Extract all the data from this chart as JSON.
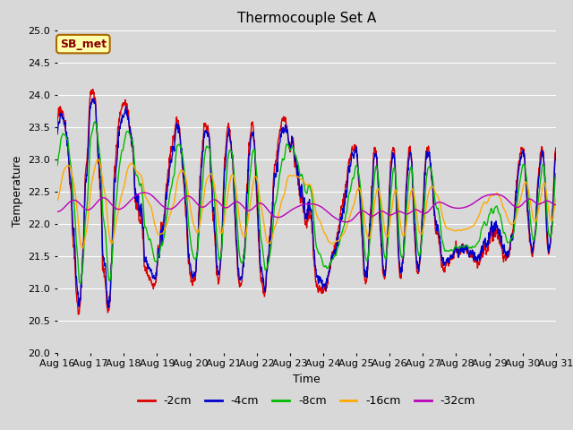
{
  "title": "Thermocouple Set A",
  "xlabel": "Time",
  "ylabel": "Temperature",
  "ylim": [
    20.0,
    25.0
  ],
  "yticks": [
    20.0,
    20.5,
    21.0,
    21.5,
    22.0,
    22.5,
    23.0,
    23.5,
    24.0,
    24.5,
    25.0
  ],
  "x_labels": [
    "Aug 16",
    "Aug 17",
    "Aug 18",
    "Aug 19",
    "Aug 20",
    "Aug 21",
    "Aug 22",
    "Aug 23",
    "Aug 24",
    "Aug 25",
    "Aug 26",
    "Aug 27",
    "Aug 28",
    "Aug 29",
    "Aug 30",
    "Aug 31"
  ],
  "series_labels": [
    "-2cm",
    "-4cm",
    "-8cm",
    "-16cm",
    "-32cm"
  ],
  "series_colors": [
    "#dd0000",
    "#0000cc",
    "#00bb00",
    "#ffaa00",
    "#bb00bb"
  ],
  "line_width": 1.0,
  "annotation_text": "SB_met",
  "annotation_facecolor": "#ffffaa",
  "annotation_edgecolor": "#aa6600",
  "annotation_textcolor": "#880000",
  "bg_color": "#d8d8d8",
  "fig_bg_color": "#d8d8d8",
  "grid_color": "#ffffff",
  "n_points": 1500
}
